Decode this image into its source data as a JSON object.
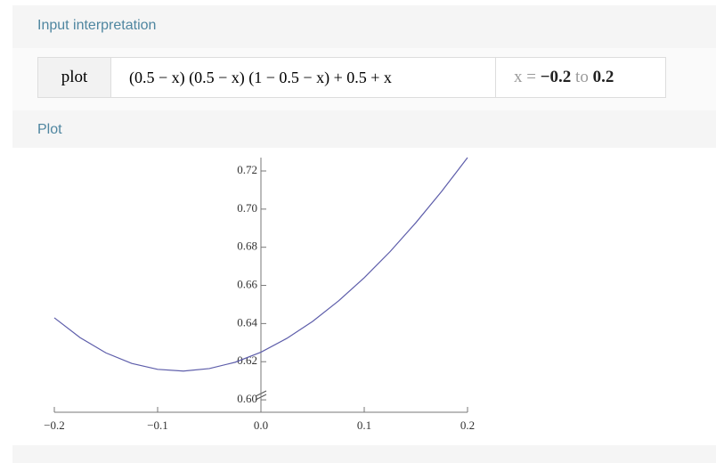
{
  "input_interpretation": {
    "title": "Input interpretation",
    "command": "plot",
    "expression": "(0.5 − x) (0.5 − x) (1 − 0.5 − x) + 0.5 + x",
    "range": {
      "variable": "x =",
      "from": "−0.2",
      "to_word": "to",
      "to": "0.2"
    }
  },
  "plot_section": {
    "title": "Plot"
  },
  "chart_data": {
    "type": "line",
    "color": "#5d5daa",
    "x": [
      -0.2,
      -0.175,
      -0.15,
      -0.125,
      -0.1,
      -0.075,
      -0.05,
      -0.025,
      0,
      0.025,
      0.05,
      0.075,
      0.1,
      0.125,
      0.15,
      0.175,
      0.2
    ],
    "values": [
      0.643,
      0.6326,
      0.6246,
      0.6191,
      0.616,
      0.6151,
      0.6164,
      0.6197,
      0.625,
      0.6322,
      0.6411,
      0.6518,
      0.664,
      0.6777,
      0.6929,
      0.7093,
      0.727
    ],
    "xlim": [
      -0.2,
      0.2
    ],
    "ylim": [
      0.5935,
      0.727
    ],
    "xticks": [
      {
        "value": -0.2,
        "label": "−0.2"
      },
      {
        "value": -0.1,
        "label": "−0.1"
      },
      {
        "value": 0,
        "label": "0.0"
      },
      0.1,
      0.2
    ],
    "yticks": [
      {
        "value": 0.6,
        "label": "0.60"
      },
      0.62,
      0.64,
      0.66,
      0.68,
      {
        "value": 0.7,
        "label": "0.70"
      },
      0.72
    ]
  }
}
